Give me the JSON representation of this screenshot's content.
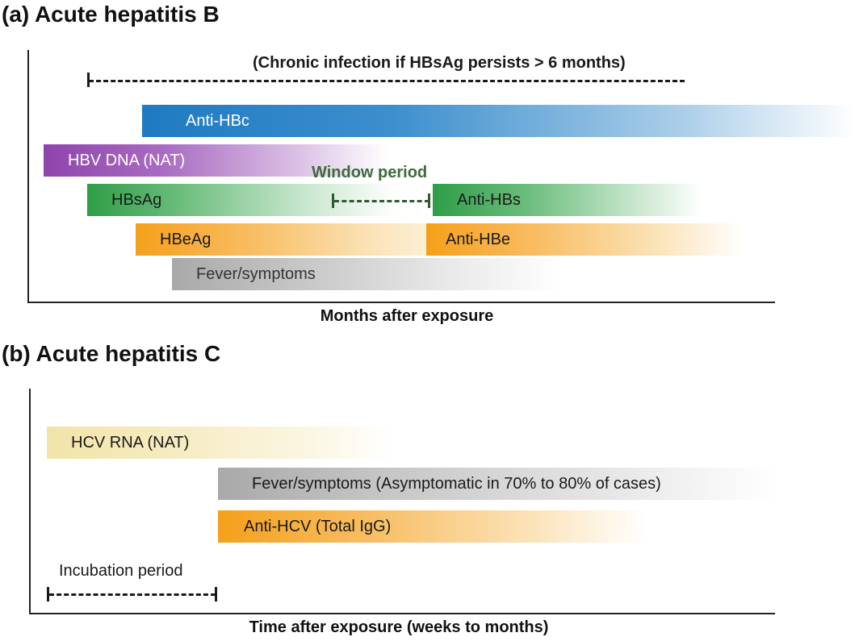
{
  "panel_a": {
    "title": "(a) Acute hepatitis B",
    "chronic_note": "(Chronic infection if HBsAg persists > 6 months)",
    "window_label": "Window period",
    "x_label": "Months after exposure",
    "bars": {
      "anti_hbc": "Anti-HBc",
      "hbv_dna": "HBV DNA (NAT)",
      "hbsag": "HBsAg",
      "anti_hbs": "Anti-HBs",
      "hbeag": "HBeAg",
      "anti_hbe": "Anti-HBe",
      "fever": "Fever/symptoms"
    }
  },
  "panel_b": {
    "title": "(b) Acute hepatitis C",
    "incubation_label": "Incubation period",
    "x_label": "Time after exposure (weeks to months)",
    "bars": {
      "hcv_rna": "HCV RNA (NAT)",
      "fever": "Fever/symptoms (Asymptomatic in 70% to 80% of cases)",
      "anti_hcv": "Anti-HCV (Total IgG)"
    }
  },
  "colors": {
    "blue": "#1f7ac1",
    "purple": "#8e44ad",
    "green": "#2e9e48",
    "orange": "#f5a01a",
    "gray": "#a9a9a9",
    "pale_yellow": "#f2e4a8",
    "dark_green_text": "#3d6b3a"
  }
}
